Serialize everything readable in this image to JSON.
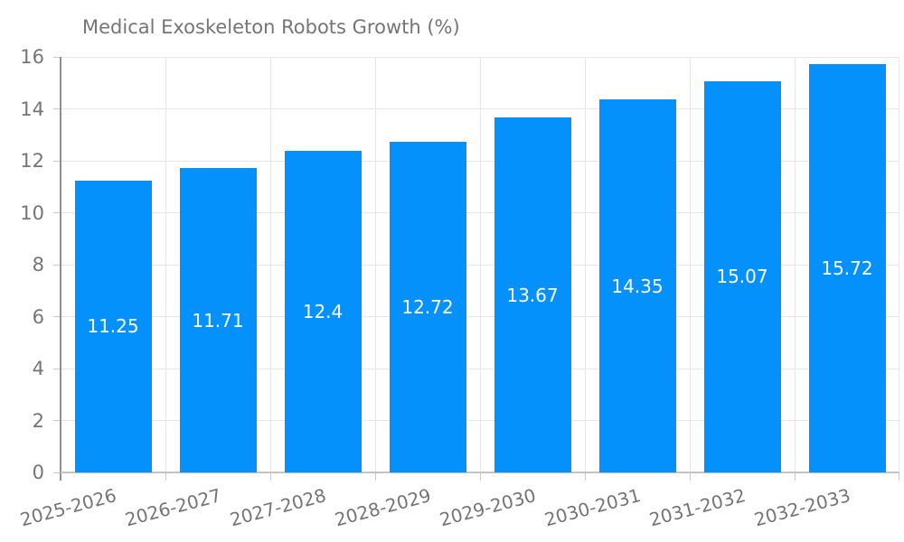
{
  "legend": {
    "label": "Medical Exoskeleton Robots Growth (%)"
  },
  "colors": {
    "bar": "#0591fb",
    "grid": "#e6e6e6",
    "tick": "#c9c9c9",
    "y_axis_line": "#8f8f8f",
    "x_axis_line": "#c4c4c4",
    "axis_text": "#757575",
    "bar_label_text": "#ffffff",
    "background": "#ffffff"
  },
  "chart_data": {
    "type": "bar",
    "title": "Medical Exoskeleton Robots Growth (%)",
    "legend_position": "top-center",
    "grid": true,
    "categories": [
      "2025-2026",
      "2026-2027",
      "2027-2028",
      "2028-2029",
      "2029-2030",
      "2030-2031",
      "2031-2032",
      "2032-2033"
    ],
    "series": [
      {
        "name": "Medical Exoskeleton Robots Growth (%)",
        "values": [
          11.25,
          11.71,
          12.4,
          12.72,
          13.67,
          14.35,
          15.07,
          15.72
        ],
        "color": "#0591fb"
      }
    ],
    "data_labels": [
      "11.25",
      "11.71",
      "12.4",
      "12.72",
      "13.67",
      "14.35",
      "15.07",
      "15.72"
    ],
    "xlabel": "",
    "ylabel": "",
    "ylim": [
      0,
      16
    ],
    "yticks": [
      0,
      2,
      4,
      6,
      8,
      10,
      12,
      14,
      16
    ],
    "x_tick_rotation_deg": -15
  }
}
